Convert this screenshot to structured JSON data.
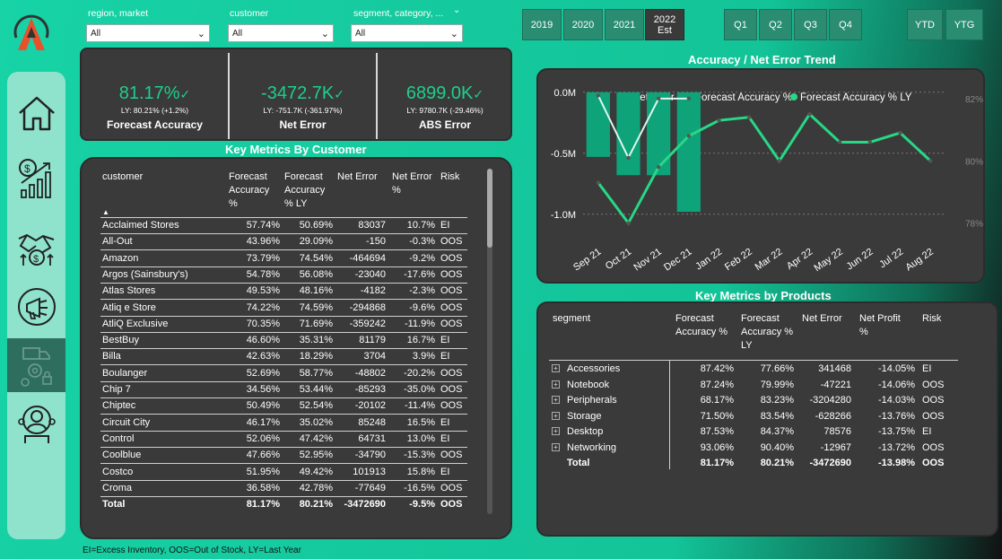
{
  "slicers": [
    {
      "label": "region, market",
      "value": "All"
    },
    {
      "label": "customer",
      "value": "All"
    },
    {
      "label": "segment, category, ...",
      "value": "All"
    }
  ],
  "years": [
    "2019",
    "2020",
    "2021",
    "2022\nEst"
  ],
  "quarters": [
    "Q1",
    "Q2",
    "Q3",
    "Q4"
  ],
  "periods": [
    "YTD",
    "YTG"
  ],
  "kpis": [
    {
      "value": "81.17%",
      "ly": "LY: 80.21% (+1.2%)",
      "title": "Forecast Accuracy"
    },
    {
      "value": "-3472.7K",
      "ly": "LY: -751.7K (-361.97%)",
      "title": "Net Error"
    },
    {
      "value": "6899.0K",
      "ly": "LY: 9780.7K (-29.46%)",
      "title": "ABS Error"
    }
  ],
  "customer_title": "Key Metrics By Customer",
  "customer_headers": [
    "customer",
    "Forecast Accuracy %",
    "Forecast Accuracy % LY",
    "Net Error",
    "Net Error %",
    "Risk"
  ],
  "customer_rows": [
    [
      "Acclaimed Stores",
      "57.74%",
      "50.69%",
      "83037",
      "10.7%",
      "EI"
    ],
    [
      "All-Out",
      "43.96%",
      "29.09%",
      "-150",
      "-0.3%",
      "OOS"
    ],
    [
      "Amazon",
      "73.79%",
      "74.54%",
      "-464694",
      "-9.2%",
      "OOS"
    ],
    [
      "Argos (Sainsbury's)",
      "54.78%",
      "56.08%",
      "-23040",
      "-17.6%",
      "OOS"
    ],
    [
      "Atlas Stores",
      "49.53%",
      "48.16%",
      "-4182",
      "-2.3%",
      "OOS"
    ],
    [
      "Atliq e Store",
      "74.22%",
      "74.59%",
      "-294868",
      "-9.6%",
      "OOS"
    ],
    [
      "AtliQ Exclusive",
      "70.35%",
      "71.69%",
      "-359242",
      "-11.9%",
      "OOS"
    ],
    [
      "BestBuy",
      "46.60%",
      "35.31%",
      "81179",
      "16.7%",
      "EI"
    ],
    [
      "Billa",
      "42.63%",
      "18.29%",
      "3704",
      "3.9%",
      "EI"
    ],
    [
      "Boulanger",
      "52.69%",
      "58.77%",
      "-48802",
      "-20.2%",
      "OOS"
    ],
    [
      "Chip 7",
      "34.56%",
      "53.44%",
      "-85293",
      "-35.0%",
      "OOS"
    ],
    [
      "Chiptec",
      "50.49%",
      "52.54%",
      "-20102",
      "-11.4%",
      "OOS"
    ],
    [
      "Circuit City",
      "46.17%",
      "35.02%",
      "85248",
      "16.5%",
      "EI"
    ],
    [
      "Control",
      "52.06%",
      "47.42%",
      "64731",
      "13.0%",
      "EI"
    ],
    [
      "Coolblue",
      "47.66%",
      "52.95%",
      "-34790",
      "-15.3%",
      "OOS"
    ],
    [
      "Costco",
      "51.95%",
      "49.42%",
      "101913",
      "15.8%",
      "EI"
    ],
    [
      "Croma",
      "36.58%",
      "42.78%",
      "-77649",
      "-16.5%",
      "OOS"
    ]
  ],
  "customer_total": [
    "Total",
    "81.17%",
    "80.21%",
    "-3472690",
    "-9.5%",
    "OOS"
  ],
  "trend_title": "Accuracy / Net Error Trend",
  "chart_data": {
    "type": "bar",
    "title": "Accuracy / Net Error Trend",
    "categories": [
      "Sep 21",
      "Oct 21",
      "Nov 21",
      "Dec 21",
      "Jan 22",
      "Feb 22",
      "Mar 22",
      "Apr 22",
      "May 22",
      "Jun 22",
      "Jul 22",
      "Aug 22"
    ],
    "series": [
      {
        "name": "Net Error",
        "type": "bar",
        "axis": "left",
        "values": [
          -0.53,
          -0.68,
          -0.68,
          -0.98,
          null,
          null,
          null,
          null,
          null,
          null,
          null,
          null
        ]
      },
      {
        "name": "Forecast Accuracy %",
        "type": "line",
        "axis": "right",
        "values": [
          82.1,
          80.1,
          82.0,
          82.0,
          null,
          null,
          null,
          null,
          null,
          null,
          null,
          null
        ]
      },
      {
        "name": "Forecast Accuracy % LY",
        "type": "line",
        "axis": "right",
        "values": [
          79.3,
          78.0,
          79.8,
          80.8,
          81.3,
          81.4,
          80.0,
          81.5,
          80.6,
          80.6,
          80.9,
          80.0
        ]
      }
    ],
    "left_axis": {
      "ticks": [
        "0.0M",
        "-0.5M",
        "-1.0M"
      ],
      "ylim": [
        -1.2,
        0.05
      ]
    },
    "right_axis": {
      "ticks": [
        "82%",
        "80%",
        "78%"
      ],
      "ylim": [
        77.5,
        82.4
      ]
    },
    "legend": "top",
    "grid": true
  },
  "product_title": "Key Metrics by Products",
  "product_headers": [
    "segment",
    "Forecast Accuracy %",
    "Forecast Accuracy % LY",
    "Net Error",
    "Net Profit %",
    "Risk"
  ],
  "product_rows": [
    [
      "Accessories",
      "87.42%",
      "77.66%",
      "341468",
      "-14.05%",
      "EI"
    ],
    [
      "Notebook",
      "87.24%",
      "79.99%",
      "-47221",
      "-14.06%",
      "OOS"
    ],
    [
      "Peripherals",
      "68.17%",
      "83.23%",
      "-3204280",
      "-14.03%",
      "OOS"
    ],
    [
      "Storage",
      "71.50%",
      "83.54%",
      "-628266",
      "-13.76%",
      "OOS"
    ],
    [
      "Desktop",
      "87.53%",
      "84.37%",
      "78576",
      "-13.75%",
      "EI"
    ],
    [
      "Networking",
      "93.06%",
      "90.40%",
      "-12967",
      "-13.72%",
      "OOS"
    ]
  ],
  "product_total": [
    "Total",
    "81.17%",
    "80.21%",
    "-3472690",
    "-13.98%",
    "OOS"
  ],
  "footnote": "EI=Excess Inventory, OOS=Out of Stock, LY=Last Year",
  "colors": {
    "accent": "#1fcf8d",
    "panel": "#3a3a3a",
    "bar": "#0fa37a",
    "line_ly": "#27d885",
    "line_cur": "#dff7ee"
  }
}
